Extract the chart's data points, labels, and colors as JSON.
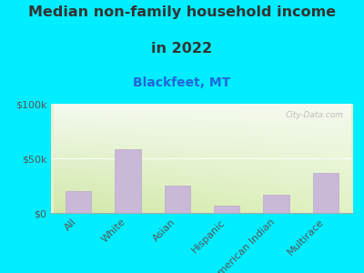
{
  "title_line1": "Median non-family household income",
  "title_line2": "in 2022",
  "subtitle": "Blackfeet, MT",
  "categories": [
    "All",
    "White",
    "Asian",
    "Hispanic",
    "American Indian",
    "Multirace"
  ],
  "values": [
    20000,
    58000,
    25000,
    7000,
    17000,
    37000
  ],
  "bar_color": "#c9b8d8",
  "bar_edge_color": "#bba8cc",
  "title_color": "#333333",
  "subtitle_color": "#2266dd",
  "background_outer": "#00eeff",
  "ylim": [
    0,
    100000
  ],
  "yticks": [
    0,
    50000,
    100000
  ],
  "ytick_labels": [
    "$0",
    "$50k",
    "$100k"
  ],
  "watermark": "City-Data.com",
  "title_fontsize": 11.5,
  "subtitle_fontsize": 10,
  "tick_fontsize": 8,
  "grid_line_color": "#dddddd",
  "plot_bg_left_bottom": "#d6e8b0",
  "plot_bg_right_bottom": "#e8f0c8",
  "plot_bg_top": "#f8faf2"
}
